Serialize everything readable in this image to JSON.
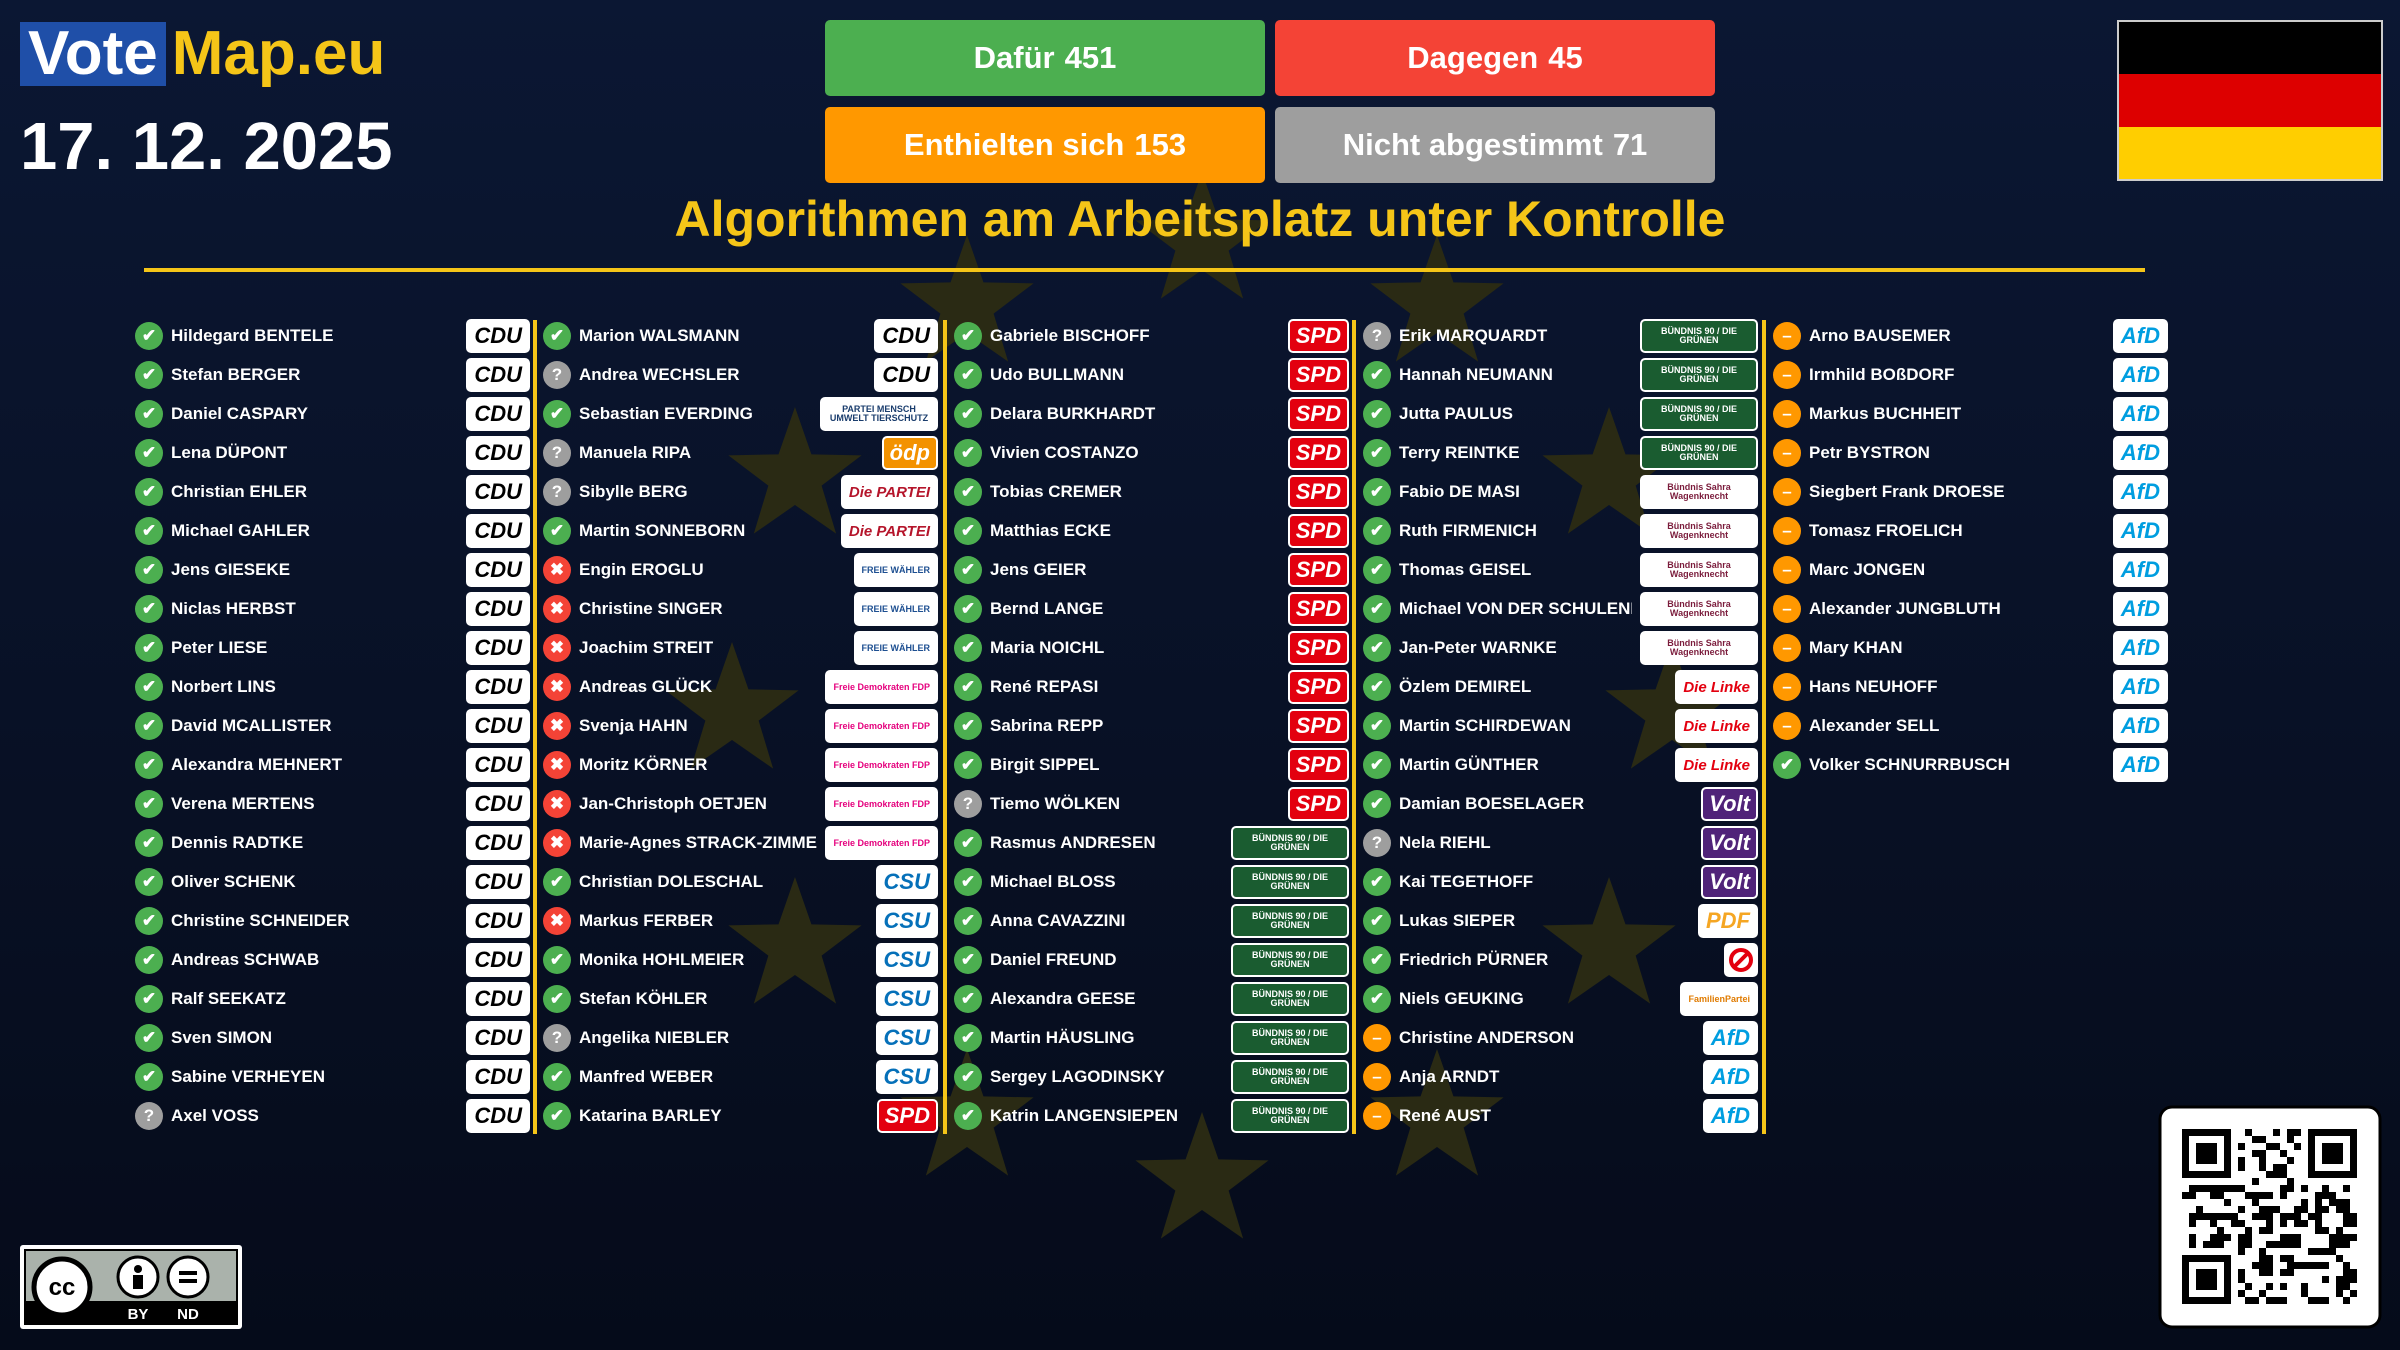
{
  "header": {
    "logo": {
      "vote": "Vote",
      "map": "Map.eu"
    },
    "date": "17. 12. 2025",
    "results": [
      {
        "label": "Dafür",
        "count": 451,
        "color": "#4caf50"
      },
      {
        "label": "Dagegen",
        "count": 45,
        "color": "#f44336"
      },
      {
        "label": "Enthielten sich",
        "count": 153,
        "color": "#ff9800"
      },
      {
        "label": "Nicht abgestimmt",
        "count": 71,
        "color": "#9e9e9e"
      }
    ],
    "title": "Algorithmen am Arbeitsplatz unter Kontrolle"
  },
  "vote_colors": {
    "✔": "#4caf50",
    "✖": "#f44336",
    "–": "#ff9800",
    "?": "#9e9e9e"
  },
  "party_styles": {
    "CDU": {
      "bg": "#ffffff",
      "fg": "#000000"
    },
    "CSU": {
      "bg": "#ffffff",
      "fg": "#0570b9"
    },
    "SPD": {
      "bg": "#e3000f",
      "fg": "#ffffff"
    },
    "AfD": {
      "bg": "#ffffff",
      "fg": "#009ee0"
    },
    "Volt": {
      "bg": "#502379",
      "fg": "#ffffff"
    },
    "PDF": {
      "bg": "#ffffff",
      "fg": "#f5a623"
    },
    "Die PARTEI": {
      "bg": "#ffffff",
      "fg": "#b5152b"
    },
    "FREIE WÄHLER": {
      "bg": "#ffffff",
      "fg": "#1d4f91"
    },
    "Die Linke": {
      "bg": "#ffffff",
      "fg": "#e3000f"
    },
    "Bündnis Sahra Wagenknecht": {
      "bg": "#ffffff",
      "fg": "#7b1c3c"
    },
    "FamilienPartei": {
      "bg": "#ffffff",
      "fg": "#e07b00"
    },
    "PARTEI MENSCH UMWELT TIERSCHUTZ": {
      "bg": "#ffffff",
      "fg": "#1a3d6d"
    },
    "ödp": {
      "bg": "#f39200",
      "fg": "#ffffff"
    },
    "BÜNDNIS 90 / DIE GRÜNEN": {
      "bg": "#1a5c30",
      "fg": "#ffffff"
    },
    "Freie Demokraten FDP": {
      "bg": "#ffffff",
      "fg": "#e5007d"
    }
  },
  "columns": [
    [
      {
        "name": "Hildegard BENTELE",
        "vote": "✔",
        "party": "CDU"
      },
      {
        "name": "Stefan BERGER",
        "vote": "✔",
        "party": "CDU"
      },
      {
        "name": "Daniel CASPARY",
        "vote": "✔",
        "party": "CDU"
      },
      {
        "name": "Lena DÜPONT",
        "vote": "✔",
        "party": "CDU"
      },
      {
        "name": "Christian EHLER",
        "vote": "✔",
        "party": "CDU"
      },
      {
        "name": "Michael GAHLER",
        "vote": "✔",
        "party": "CDU"
      },
      {
        "name": "Jens GIESEKE",
        "vote": "✔",
        "party": "CDU"
      },
      {
        "name": "Niclas HERBST",
        "vote": "✔",
        "party": "CDU"
      },
      {
        "name": "Peter LIESE",
        "vote": "✔",
        "party": "CDU"
      },
      {
        "name": "Norbert LINS",
        "vote": "✔",
        "party": "CDU"
      },
      {
        "name": "David MCALLISTER",
        "vote": "✔",
        "party": "CDU"
      },
      {
        "name": "Alexandra MEHNERT",
        "vote": "✔",
        "party": "CDU"
      },
      {
        "name": "Verena MERTENS",
        "vote": "✔",
        "party": "CDU"
      },
      {
        "name": "Dennis RADTKE",
        "vote": "✔",
        "party": "CDU"
      },
      {
        "name": "Oliver SCHENK",
        "vote": "✔",
        "party": "CDU"
      },
      {
        "name": "Christine SCHNEIDER",
        "vote": "✔",
        "party": "CDU"
      },
      {
        "name": "Andreas SCHWAB",
        "vote": "✔",
        "party": "CDU"
      },
      {
        "name": "Ralf SEEKATZ",
        "vote": "✔",
        "party": "CDU"
      },
      {
        "name": "Sven SIMON",
        "vote": "✔",
        "party": "CDU"
      },
      {
        "name": "Sabine VERHEYEN",
        "vote": "✔",
        "party": "CDU"
      },
      {
        "name": "Axel VOSS",
        "vote": "?",
        "party": "CDU"
      }
    ],
    [
      {
        "name": "Marion WALSMANN",
        "vote": "✔",
        "party": "CDU"
      },
      {
        "name": "Andrea WECHSLER",
        "vote": "?",
        "party": "CDU"
      },
      {
        "name": "Sebastian EVERDING",
        "vote": "✔",
        "party": "PARTEI MENSCH UMWELT TIERSCHUTZ"
      },
      {
        "name": "Manuela RIPA",
        "vote": "?",
        "party": "ödp"
      },
      {
        "name": "Sibylle BERG",
        "vote": "?",
        "party": "Die PARTEI"
      },
      {
        "name": "Martin SONNEBORN",
        "vote": "✔",
        "party": "Die PARTEI"
      },
      {
        "name": "Engin EROGLU",
        "vote": "✖",
        "party": "FREIE WÄHLER"
      },
      {
        "name": "Christine SINGER",
        "vote": "✖",
        "party": "FREIE WÄHLER"
      },
      {
        "name": "Joachim STREIT",
        "vote": "✖",
        "party": "FREIE WÄHLER"
      },
      {
        "name": "Andreas GLÜCK",
        "vote": "✖",
        "party": "Freie Demokraten FDP"
      },
      {
        "name": "Svenja HAHN",
        "vote": "✖",
        "party": "Freie Demokraten FDP"
      },
      {
        "name": "Moritz KÖRNER",
        "vote": "✖",
        "party": "Freie Demokraten FDP"
      },
      {
        "name": "Jan-Christoph OETJEN",
        "vote": "✖",
        "party": "Freie Demokraten FDP"
      },
      {
        "name": "Marie-Agnes STRACK-ZIMMERMANN",
        "vote": "✖",
        "party": "Freie Demokraten FDP"
      },
      {
        "name": "Christian DOLESCHAL",
        "vote": "✔",
        "party": "CSU"
      },
      {
        "name": "Markus FERBER",
        "vote": "✖",
        "party": "CSU"
      },
      {
        "name": "Monika HOHLMEIER",
        "vote": "✔",
        "party": "CSU"
      },
      {
        "name": "Stefan KÖHLER",
        "vote": "✔",
        "party": "CSU"
      },
      {
        "name": "Angelika NIEBLER",
        "vote": "?",
        "party": "CSU"
      },
      {
        "name": "Manfred WEBER",
        "vote": "✔",
        "party": "CSU"
      },
      {
        "name": "Katarina BARLEY",
        "vote": "✔",
        "party": "SPD"
      }
    ],
    [
      {
        "name": "Gabriele BISCHOFF",
        "vote": "✔",
        "party": "SPD"
      },
      {
        "name": "Udo BULLMANN",
        "vote": "✔",
        "party": "SPD"
      },
      {
        "name": "Delara BURKHARDT",
        "vote": "✔",
        "party": "SPD"
      },
      {
        "name": "Vivien COSTANZO",
        "vote": "✔",
        "party": "SPD"
      },
      {
        "name": "Tobias CREMER",
        "vote": "✔",
        "party": "SPD"
      },
      {
        "name": "Matthias ECKE",
        "vote": "✔",
        "party": "SPD"
      },
      {
        "name": "Jens GEIER",
        "vote": "✔",
        "party": "SPD"
      },
      {
        "name": "Bernd LANGE",
        "vote": "✔",
        "party": "SPD"
      },
      {
        "name": "Maria NOICHL",
        "vote": "✔",
        "party": "SPD"
      },
      {
        "name": "René REPASI",
        "vote": "✔",
        "party": "SPD"
      },
      {
        "name": "Sabrina REPP",
        "vote": "✔",
        "party": "SPD"
      },
      {
        "name": "Birgit SIPPEL",
        "vote": "✔",
        "party": "SPD"
      },
      {
        "name": "Tiemo WÖLKEN",
        "vote": "?",
        "party": "SPD"
      },
      {
        "name": "Rasmus ANDRESEN",
        "vote": "✔",
        "party": "BÜNDNIS 90 / DIE GRÜNEN"
      },
      {
        "name": "Michael BLOSS",
        "vote": "✔",
        "party": "BÜNDNIS 90 / DIE GRÜNEN"
      },
      {
        "name": "Anna CAVAZZINI",
        "vote": "✔",
        "party": "BÜNDNIS 90 / DIE GRÜNEN"
      },
      {
        "name": "Daniel FREUND",
        "vote": "✔",
        "party": "BÜNDNIS 90 / DIE GRÜNEN"
      },
      {
        "name": "Alexandra GEESE",
        "vote": "✔",
        "party": "BÜNDNIS 90 / DIE GRÜNEN"
      },
      {
        "name": "Martin HÄUSLING",
        "vote": "✔",
        "party": "BÜNDNIS 90 / DIE GRÜNEN"
      },
      {
        "name": "Sergey LAGODINSKY",
        "vote": "✔",
        "party": "BÜNDNIS 90 / DIE GRÜNEN"
      },
      {
        "name": "Katrin LANGENSIEPEN",
        "vote": "✔",
        "party": "BÜNDNIS 90 / DIE GRÜNEN"
      }
    ],
    [
      {
        "name": "Erik MARQUARDT",
        "vote": "?",
        "party": "BÜNDNIS 90 / DIE GRÜNEN"
      },
      {
        "name": "Hannah NEUMANN",
        "vote": "✔",
        "party": "BÜNDNIS 90 / DIE GRÜNEN"
      },
      {
        "name": "Jutta PAULUS",
        "vote": "✔",
        "party": "BÜNDNIS 90 / DIE GRÜNEN"
      },
      {
        "name": "Terry REINTKE",
        "vote": "✔",
        "party": "BÜNDNIS 90 / DIE GRÜNEN"
      },
      {
        "name": "Fabio DE MASI",
        "vote": "✔",
        "party": "Bündnis Sahra Wagenknecht"
      },
      {
        "name": "Ruth FIRMENICH",
        "vote": "✔",
        "party": "Bündnis Sahra Wagenknecht"
      },
      {
        "name": "Thomas GEISEL",
        "vote": "✔",
        "party": "Bündnis Sahra Wagenknecht"
      },
      {
        "name": "Michael VON DER SCHULENBURG",
        "vote": "✔",
        "party": "Bündnis Sahra Wagenknecht"
      },
      {
        "name": "Jan-Peter WARNKE",
        "vote": "✔",
        "party": "Bündnis Sahra Wagenknecht"
      },
      {
        "name": "Özlem DEMIREL",
        "vote": "✔",
        "party": "Die Linke"
      },
      {
        "name": "Martin SCHIRDEWAN",
        "vote": "✔",
        "party": "Die Linke"
      },
      {
        "name": "Martin GÜNTHER",
        "vote": "✔",
        "party": "Die Linke"
      },
      {
        "name": "Damian BOESELAGER",
        "vote": "✔",
        "party": "Volt"
      },
      {
        "name": "Nela RIEHL",
        "vote": "?",
        "party": "Volt"
      },
      {
        "name": "Kai TEGETHOFF",
        "vote": "✔",
        "party": "Volt"
      },
      {
        "name": "Lukas SIEPER",
        "vote": "✔",
        "party": "PDF"
      },
      {
        "name": "Friedrich PÜRNER",
        "vote": "✔",
        "party": null
      },
      {
        "name": "Niels GEUKING",
        "vote": "✔",
        "party": "FamilienPartei"
      },
      {
        "name": "Christine ANDERSON",
        "vote": "–",
        "party": "AfD"
      },
      {
        "name": "Anja ARNDT",
        "vote": "–",
        "party": "AfD"
      },
      {
        "name": "René AUST",
        "vote": "–",
        "party": "AfD"
      }
    ],
    [
      {
        "name": "Arno BAUSEMER",
        "vote": "–",
        "party": "AfD"
      },
      {
        "name": "Irmhild BOßDORF",
        "vote": "–",
        "party": "AfD"
      },
      {
        "name": "Markus BUCHHEIT",
        "vote": "–",
        "party": "AfD"
      },
      {
        "name": "Petr BYSTRON",
        "vote": "–",
        "party": "AfD"
      },
      {
        "name": "Siegbert Frank DROESE",
        "vote": "–",
        "party": "AfD"
      },
      {
        "name": "Tomasz FROELICH",
        "vote": "–",
        "party": "AfD"
      },
      {
        "name": "Marc JONGEN",
        "vote": "–",
        "party": "AfD"
      },
      {
        "name": "Alexander JUNGBLUTH",
        "vote": "–",
        "party": "AfD"
      },
      {
        "name": "Mary KHAN",
        "vote": "–",
        "party": "AfD"
      },
      {
        "name": "Hans NEUHOFF",
        "vote": "–",
        "party": "AfD"
      },
      {
        "name": "Alexander SELL",
        "vote": "–",
        "party": "AfD"
      },
      {
        "name": "Volker SCHNURRBUSCH",
        "vote": "✔",
        "party": "AfD"
      }
    ]
  ],
  "license": {
    "by": "BY",
    "nd": "ND"
  }
}
